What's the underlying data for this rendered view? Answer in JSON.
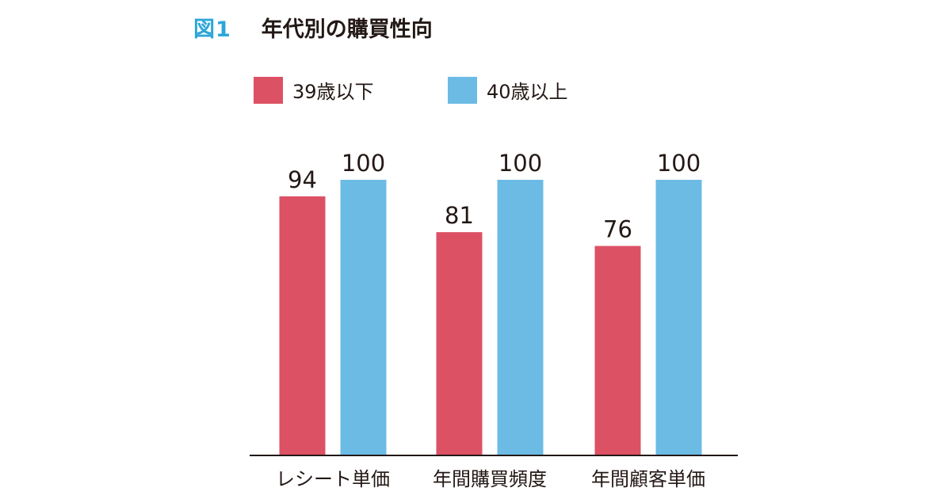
{
  "figure": {
    "label": "図1",
    "title": "年代別の購買性向"
  },
  "colors": {
    "figure_label": "#2ca6d8",
    "series_under_39": "#dc5164",
    "series_40_over": "#6cbbe5",
    "axis": "#231815",
    "text": "#231815"
  },
  "chart_data": {
    "type": "bar",
    "title": "年代別の購買性向",
    "categories": [
      "レシート単価",
      "年間購買頻度",
      "年間顧客単価"
    ],
    "series": [
      {
        "name": "39歳以下",
        "values": [
          94,
          81,
          76
        ],
        "color": "#dc5164"
      },
      {
        "name": "40歳以上",
        "values": [
          100,
          100,
          100
        ],
        "color": "#6cbbe5"
      }
    ],
    "xlabel": "",
    "ylabel": "",
    "ylim": [
      0,
      100
    ],
    "grid": false,
    "legend_position": "top-left",
    "data_labels": true
  }
}
